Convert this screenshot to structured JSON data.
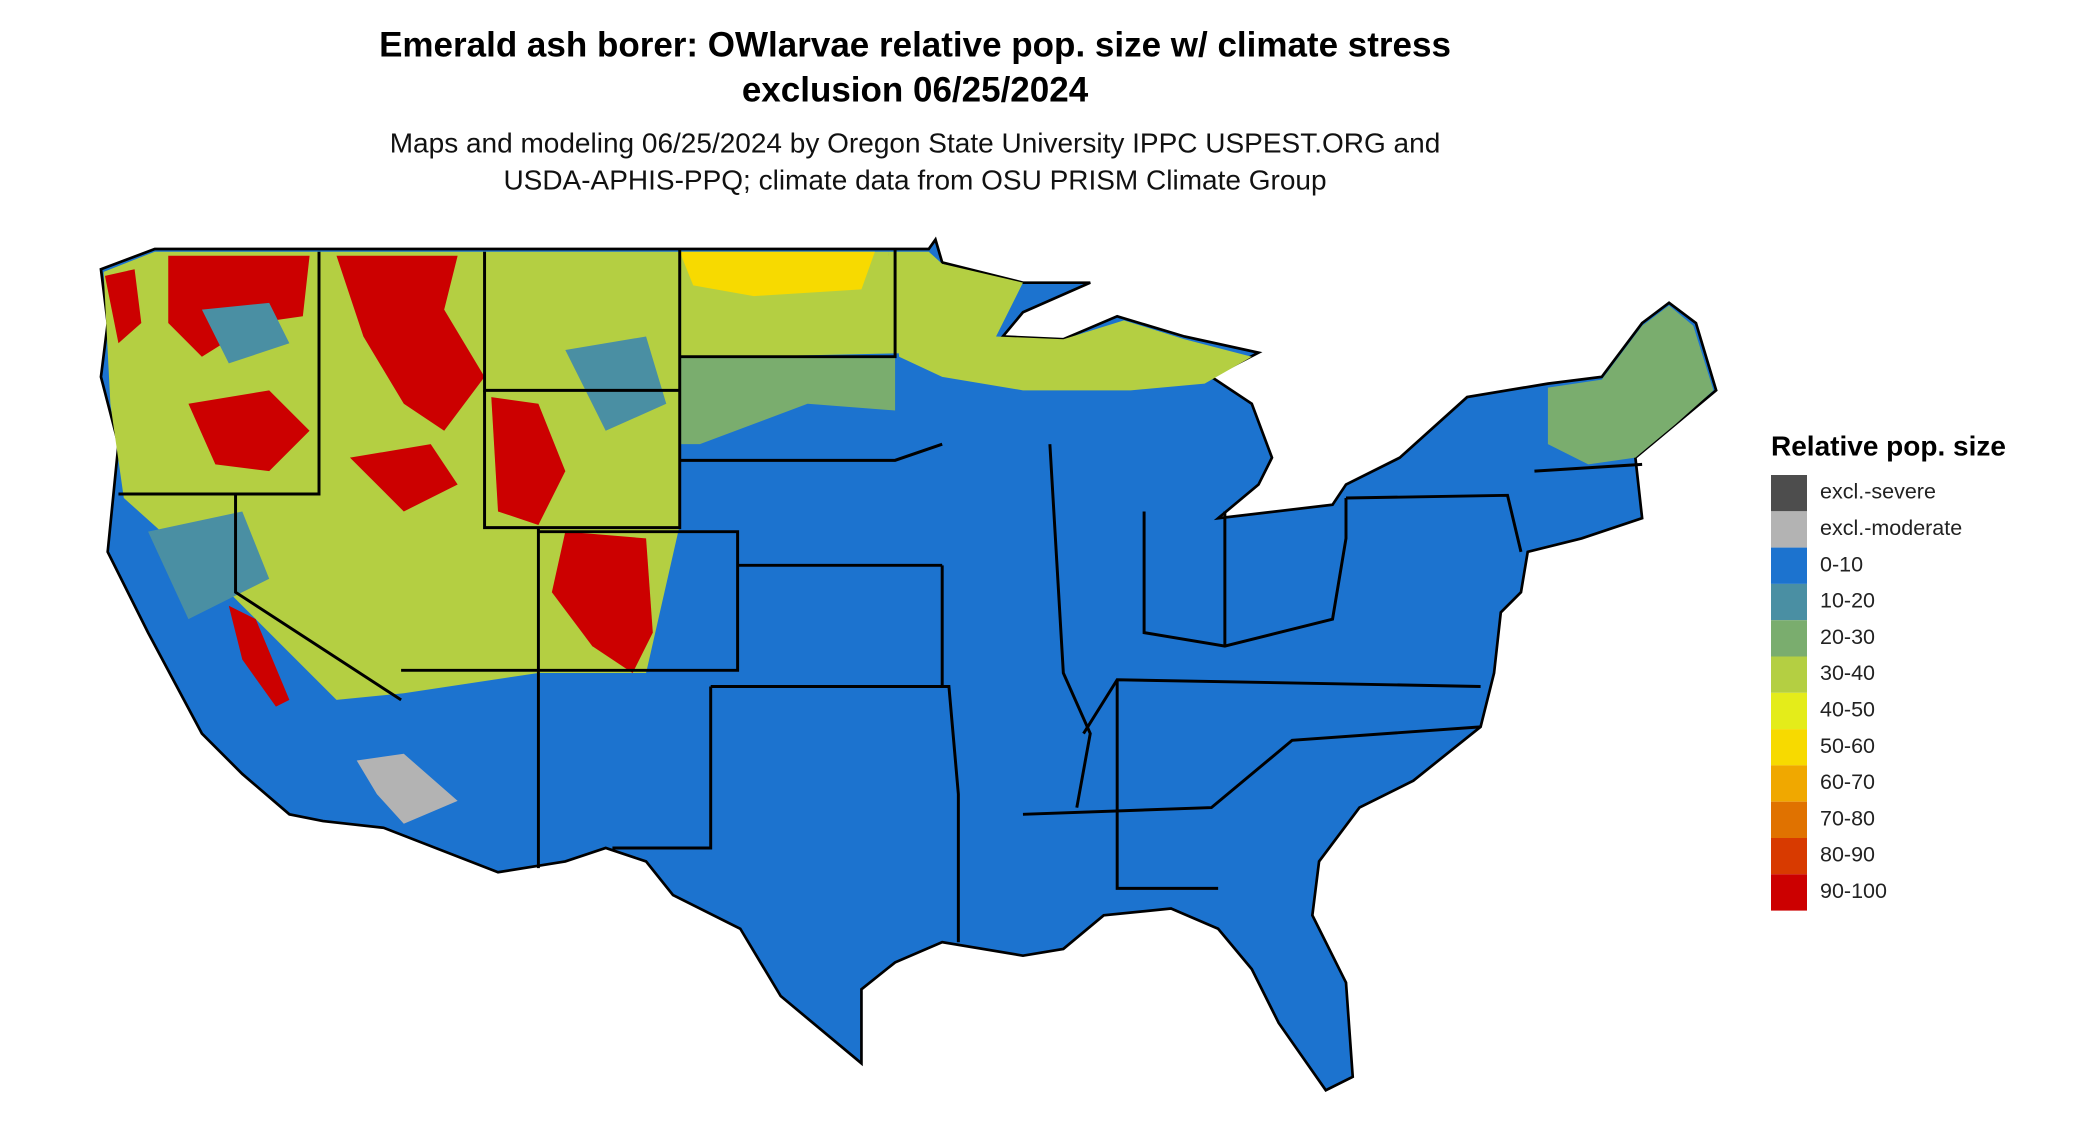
{
  "header": {
    "title": [
      "Emerald ash borer: OWlarvae relative pop. size w/ climate stress",
      "exclusion 06/25/2024"
    ],
    "subtitle": [
      "Maps and modeling 06/25/2024 by Oregon State University IPPC USPEST.ORG and",
      "USDA-APHIS-PPQ; climate data from OSU PRISM Climate Group"
    ]
  },
  "legend": {
    "title": "Relative pop. size",
    "items": [
      {
        "label": "excl.-severe",
        "color": "#4d4d4d"
      },
      {
        "label": "excl.-moderate",
        "color": "#b3b3b3"
      },
      {
        "label": "0-10",
        "color": "#1c73cf"
      },
      {
        "label": "10-20",
        "color": "#4a8fa3"
      },
      {
        "label": "20-30",
        "color": "#7aad6e"
      },
      {
        "label": "30-40",
        "color": "#b4cf42"
      },
      {
        "label": "40-50",
        "color": "#e4ec1a"
      },
      {
        "label": "50-60",
        "color": "#f7da00"
      },
      {
        "label": "60-70",
        "color": "#f0a800"
      },
      {
        "label": "70-80",
        "color": "#e07200"
      },
      {
        "label": "80-90",
        "color": "#d83a00"
      },
      {
        "label": "90-100",
        "color": "#cc0000"
      }
    ]
  }
}
